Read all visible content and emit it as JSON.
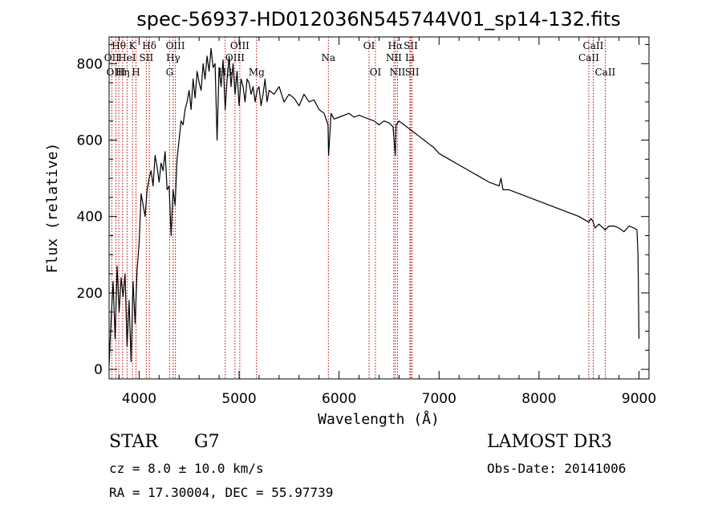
{
  "chart_data": {
    "type": "line",
    "title": "spec-56937-HD012036N545744V01_sp14-132.fits",
    "xlabel": "Wavelength (Å)",
    "ylabel": "Flux (relative)",
    "xlim": [
      3700,
      9100
    ],
    "ylim": [
      -25,
      870
    ],
    "x_ticks": [
      4000,
      5000,
      6000,
      7000,
      8000,
      9000
    ],
    "y_ticks": [
      0,
      200,
      400,
      600,
      800
    ],
    "grid": false,
    "series": [
      {
        "line_color": "#000000",
        "x": [
          3700,
          3720,
          3740,
          3760,
          3780,
          3800,
          3820,
          3840,
          3860,
          3880,
          3900,
          3920,
          3940,
          3960,
          3980,
          4000,
          4020,
          4040,
          4060,
          4080,
          4100,
          4120,
          4140,
          4160,
          4180,
          4200,
          4220,
          4240,
          4260,
          4280,
          4300,
          4320,
          4340,
          4360,
          4380,
          4400,
          4420,
          4440,
          4460,
          4480,
          4500,
          4520,
          4540,
          4560,
          4580,
          4600,
          4620,
          4640,
          4660,
          4680,
          4700,
          4720,
          4740,
          4760,
          4780,
          4800,
          4820,
          4840,
          4861,
          4880,
          4900,
          4920,
          4940,
          4960,
          4980,
          5000,
          5020,
          5040,
          5060,
          5080,
          5100,
          5120,
          5140,
          5160,
          5180,
          5200,
          5220,
          5240,
          5260,
          5280,
          5300,
          5350,
          5400,
          5450,
          5500,
          5550,
          5600,
          5650,
          5700,
          5750,
          5800,
          5850,
          5890,
          5895,
          5920,
          5950,
          6000,
          6050,
          6100,
          6150,
          6200,
          6250,
          6300,
          6350,
          6400,
          6450,
          6500,
          6540,
          6563,
          6570,
          6600,
          6650,
          6700,
          6750,
          6800,
          6850,
          6900,
          6950,
          7000,
          7100,
          7200,
          7300,
          7400,
          7500,
          7600,
          7620,
          7640,
          7700,
          7800,
          7900,
          8000,
          8100,
          8200,
          8300,
          8400,
          8498,
          8520,
          8542,
          8560,
          8600,
          8662,
          8700,
          8750,
          8800,
          8850,
          8900,
          8950,
          8980,
          8990,
          9000
        ],
        "y": [
          10,
          130,
          230,
          80,
          270,
          150,
          240,
          190,
          250,
          60,
          180,
          20,
          230,
          120,
          260,
          330,
          460,
          430,
          400,
          470,
          500,
          520,
          480,
          560,
          530,
          490,
          540,
          520,
          570,
          470,
          480,
          350,
          470,
          430,
          550,
          600,
          650,
          640,
          680,
          700,
          730,
          680,
          760,
          710,
          780,
          750,
          730,
          800,
          760,
          820,
          780,
          840,
          790,
          800,
          600,
          790,
          740,
          810,
          680,
          760,
          820,
          740,
          800,
          720,
          780,
          690,
          760,
          740,
          700,
          760,
          750,
          720,
          740,
          700,
          730,
          740,
          690,
          720,
          760,
          700,
          730,
          720,
          740,
          700,
          720,
          710,
          690,
          720,
          700,
          705,
          680,
          670,
          640,
          560,
          670,
          655,
          660,
          665,
          670,
          660,
          665,
          660,
          655,
          650,
          640,
          650,
          645,
          635,
          560,
          640,
          650,
          640,
          630,
          620,
          610,
          600,
          590,
          580,
          565,
          550,
          535,
          520,
          505,
          490,
          480,
          500,
          470,
          470,
          460,
          450,
          440,
          430,
          420,
          410,
          400,
          385,
          395,
          385,
          370,
          380,
          365,
          375,
          375,
          370,
          360,
          375,
          370,
          365,
          300,
          80
        ]
      }
    ],
    "line_labels": [
      {
        "text": "Hθ",
        "x": 3797,
        "row": 1
      },
      {
        "text": "OII",
        "x": 3727,
        "row": 2
      },
      {
        "text": "OIII",
        "x": 3768,
        "row": 3
      },
      {
        "text": "HeI",
        "x": 3880,
        "row": 2
      },
      {
        "text": "Hη",
        "x": 3835,
        "row": 3
      },
      {
        "text": "K",
        "x": 3934,
        "row": 1
      },
      {
        "text": "SII",
        "x": 4072,
        "row": 2
      },
      {
        "text": "H",
        "x": 3969,
        "row": 3
      },
      {
        "text": "Hδ",
        "x": 4102,
        "row": 1
      },
      {
        "text": "OIII",
        "x": 4363,
        "row": 1
      },
      {
        "text": "Hγ",
        "x": 4341,
        "row": 2
      },
      {
        "text": "G",
        "x": 4305,
        "row": 3
      },
      {
        "text": "Hβ",
        "x": 4861,
        "row": 3
      },
      {
        "text": "OIII",
        "x": 5007,
        "row": 1
      },
      {
        "text": "OIII",
        "x": 4959,
        "row": 2
      },
      {
        "text": "Mg",
        "x": 5175,
        "row": 3
      },
      {
        "text": "Na",
        "x": 5893,
        "row": 2
      },
      {
        "text": "OI",
        "x": 6300,
        "row": 1
      },
      {
        "text": "OI",
        "x": 6364,
        "row": 3
      },
      {
        "text": "Hα",
        "x": 6563,
        "row": 1
      },
      {
        "text": "NII",
        "x": 6548,
        "row": 2
      },
      {
        "text": "NII",
        "x": 6584,
        "row": 3
      },
      {
        "text": "SII",
        "x": 6717,
        "row": 1
      },
      {
        "text": "Li",
        "x": 6708,
        "row": 2
      },
      {
        "text": "SII",
        "x": 6731,
        "row": 3
      },
      {
        "text": "CaII",
        "x": 8542,
        "row": 1
      },
      {
        "text": "CaII",
        "x": 8498,
        "row": 2
      },
      {
        "text": "CaII",
        "x": 8662,
        "row": 3
      }
    ],
    "line_marker_color": "#c00000"
  },
  "info": {
    "object_class": "STAR",
    "subclass": "G7",
    "cz": "cz = 8.0 ± 10.0 km/s",
    "coords": "RA =  17.30004, DEC =  55.97739",
    "survey": "LAMOST DR3",
    "obs_date": "Obs-Date: 20141006"
  }
}
